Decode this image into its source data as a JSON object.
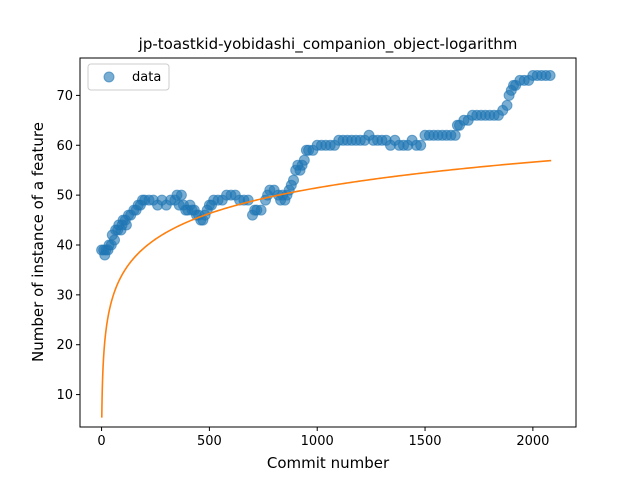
{
  "chart_data": {
    "type": "scatter",
    "title": "jp-toastkid-yobidashi_companion_object-logarithm",
    "xlabel": "Commit number",
    "ylabel": "Number of instance of a feature",
    "xlim": [
      -100,
      2200
    ],
    "ylim": [
      3.5,
      77.5
    ],
    "xticks": [
      0,
      500,
      1000,
      1500,
      2000
    ],
    "yticks": [
      10,
      20,
      30,
      40,
      50,
      60,
      70
    ],
    "grid": false,
    "legend": {
      "position": "top-left",
      "entries": [
        {
          "label": "data",
          "marker": "circle",
          "color": "#1f77b4"
        }
      ]
    },
    "series": [
      {
        "name": "data",
        "kind": "scatter",
        "color": "#1f77b4",
        "alpha": 0.6,
        "points": [
          [
            0,
            39
          ],
          [
            10,
            39
          ],
          [
            15,
            38
          ],
          [
            20,
            39
          ],
          [
            30,
            39
          ],
          [
            35,
            40
          ],
          [
            45,
            40
          ],
          [
            50,
            42
          ],
          [
            60,
            41
          ],
          [
            65,
            43
          ],
          [
            75,
            43
          ],
          [
            80,
            44
          ],
          [
            90,
            43
          ],
          [
            95,
            44
          ],
          [
            100,
            45
          ],
          [
            110,
            45
          ],
          [
            115,
            44
          ],
          [
            125,
            46
          ],
          [
            135,
            46
          ],
          [
            150,
            47
          ],
          [
            160,
            47
          ],
          [
            170,
            48
          ],
          [
            180,
            48
          ],
          [
            190,
            49
          ],
          [
            200,
            49
          ],
          [
            220,
            49
          ],
          [
            240,
            49
          ],
          [
            260,
            48
          ],
          [
            280,
            49
          ],
          [
            300,
            48
          ],
          [
            320,
            49
          ],
          [
            340,
            49
          ],
          [
            350,
            50
          ],
          [
            360,
            48
          ],
          [
            370,
            50
          ],
          [
            380,
            48
          ],
          [
            390,
            47
          ],
          [
            400,
            47
          ],
          [
            410,
            48
          ],
          [
            420,
            47
          ],
          [
            430,
            47
          ],
          [
            440,
            46
          ],
          [
            450,
            46
          ],
          [
            460,
            45
          ],
          [
            470,
            45
          ],
          [
            480,
            46
          ],
          [
            490,
            47
          ],
          [
            500,
            48
          ],
          [
            510,
            48
          ],
          [
            520,
            49
          ],
          [
            540,
            49
          ],
          [
            560,
            49
          ],
          [
            580,
            50
          ],
          [
            600,
            50
          ],
          [
            620,
            50
          ],
          [
            640,
            49
          ],
          [
            660,
            49
          ],
          [
            680,
            49
          ],
          [
            700,
            46
          ],
          [
            710,
            47
          ],
          [
            720,
            47
          ],
          [
            740,
            47
          ],
          [
            760,
            49
          ],
          [
            770,
            50
          ],
          [
            780,
            51
          ],
          [
            800,
            51
          ],
          [
            820,
            50
          ],
          [
            830,
            49
          ],
          [
            840,
            50
          ],
          [
            850,
            49
          ],
          [
            860,
            50
          ],
          [
            870,
            51
          ],
          [
            880,
            52
          ],
          [
            890,
            53
          ],
          [
            900,
            55
          ],
          [
            910,
            56
          ],
          [
            920,
            55
          ],
          [
            930,
            56
          ],
          [
            940,
            57
          ],
          [
            950,
            59
          ],
          [
            960,
            59
          ],
          [
            980,
            59
          ],
          [
            1000,
            60
          ],
          [
            1020,
            60
          ],
          [
            1040,
            60
          ],
          [
            1060,
            60
          ],
          [
            1080,
            60
          ],
          [
            1100,
            61
          ],
          [
            1120,
            61
          ],
          [
            1140,
            61
          ],
          [
            1160,
            61
          ],
          [
            1180,
            61
          ],
          [
            1200,
            61
          ],
          [
            1220,
            61
          ],
          [
            1240,
            62
          ],
          [
            1260,
            61
          ],
          [
            1280,
            61
          ],
          [
            1300,
            61
          ],
          [
            1320,
            61
          ],
          [
            1340,
            60
          ],
          [
            1360,
            61
          ],
          [
            1380,
            60
          ],
          [
            1400,
            60
          ],
          [
            1420,
            60
          ],
          [
            1440,
            61
          ],
          [
            1460,
            60
          ],
          [
            1480,
            60
          ],
          [
            1500,
            62
          ],
          [
            1520,
            62
          ],
          [
            1540,
            62
          ],
          [
            1560,
            62
          ],
          [
            1580,
            62
          ],
          [
            1600,
            62
          ],
          [
            1620,
            62
          ],
          [
            1640,
            62
          ],
          [
            1650,
            64
          ],
          [
            1660,
            64
          ],
          [
            1680,
            65
          ],
          [
            1700,
            65
          ],
          [
            1720,
            66
          ],
          [
            1740,
            66
          ],
          [
            1760,
            66
          ],
          [
            1780,
            66
          ],
          [
            1800,
            66
          ],
          [
            1820,
            66
          ],
          [
            1840,
            66
          ],
          [
            1860,
            67
          ],
          [
            1880,
            68
          ],
          [
            1890,
            70
          ],
          [
            1900,
            71
          ],
          [
            1910,
            72
          ],
          [
            1920,
            72
          ],
          [
            1940,
            73
          ],
          [
            1960,
            73
          ],
          [
            1980,
            73
          ],
          [
            2000,
            74
          ],
          [
            2020,
            74
          ],
          [
            2040,
            74
          ],
          [
            2060,
            74
          ],
          [
            2080,
            74
          ]
        ]
      },
      {
        "name": "fit",
        "kind": "line",
        "color": "#ff7f0e",
        "a": 7.45,
        "x0": 1.06,
        "x_end": 2085
      }
    ]
  }
}
